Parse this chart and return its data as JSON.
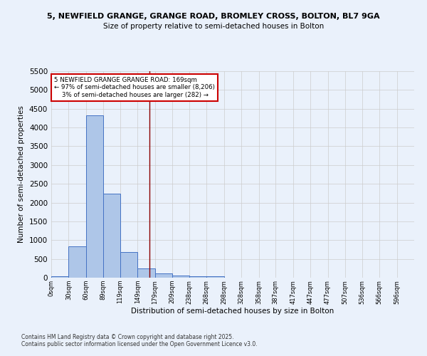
{
  "title1": "5, NEWFIELD GRANGE, GRANGE ROAD, BROMLEY CROSS, BOLTON, BL7 9GA",
  "title2": "Size of property relative to semi-detached houses in Bolton",
  "xlabel": "Distribution of semi-detached houses by size in Bolton",
  "ylabel": "Number of semi-detached properties",
  "bin_labels": [
    "0sqm",
    "30sqm",
    "60sqm",
    "89sqm",
    "119sqm",
    "149sqm",
    "179sqm",
    "209sqm",
    "238sqm",
    "268sqm",
    "298sqm",
    "328sqm",
    "358sqm",
    "387sqm",
    "417sqm",
    "447sqm",
    "477sqm",
    "507sqm",
    "536sqm",
    "566sqm",
    "596sqm"
  ],
  "bar_values": [
    30,
    840,
    4330,
    2240,
    690,
    240,
    115,
    55,
    30,
    30,
    0,
    0,
    0,
    0,
    0,
    0,
    0,
    0,
    0,
    0
  ],
  "bar_color": "#aec6e8",
  "bar_edge_color": "#4472c4",
  "grid_color": "#cccccc",
  "background_color": "#eaf1fb",
  "vline_x": 169,
  "vline_color": "#8b0000",
  "annotation_text": "5 NEWFIELD GRANGE GRANGE ROAD: 169sqm\n← 97% of semi-detached houses are smaller (8,206)\n    3% of semi-detached houses are larger (282) →",
  "annotation_box_color": "#ffffff",
  "annotation_border_color": "#cc0000",
  "ylim": [
    0,
    5500
  ],
  "yticks": [
    0,
    500,
    1000,
    1500,
    2000,
    2500,
    3000,
    3500,
    4000,
    4500,
    5000,
    5500
  ],
  "footnote1": "Contains HM Land Registry data © Crown copyright and database right 2025.",
  "footnote2": "Contains public sector information licensed under the Open Government Licence v3.0.",
  "bin_starts": [
    0,
    30,
    60,
    89,
    119,
    149,
    179,
    209,
    238,
    268,
    298,
    328,
    358,
    387,
    417,
    447,
    477,
    507,
    536,
    566
  ],
  "xlim_max": 626
}
